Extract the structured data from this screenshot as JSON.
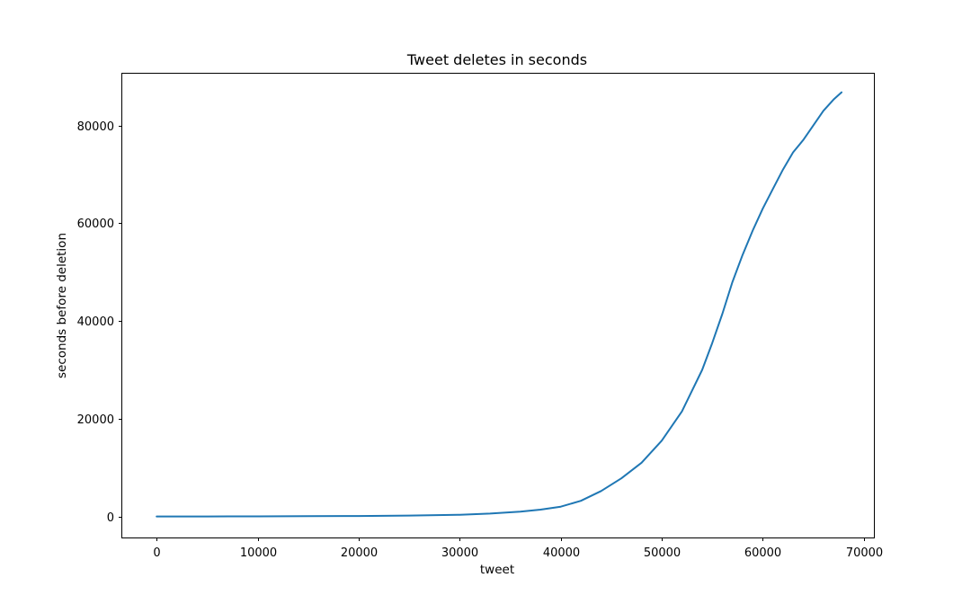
{
  "chart_data": {
    "type": "line",
    "title": "Tweet deletes in seconds",
    "xlabel": "tweet",
    "ylabel": "seconds before deletion",
    "xlim": [
      -3400,
      71000
    ],
    "ylim": [
      -4300,
      90600
    ],
    "xticks": [
      0,
      10000,
      20000,
      30000,
      40000,
      50000,
      60000,
      70000
    ],
    "xtick_labels": [
      "0",
      "10000",
      "20000",
      "30000",
      "40000",
      "50000",
      "60000",
      "70000"
    ],
    "yticks": [
      0,
      20000,
      40000,
      60000,
      80000
    ],
    "ytick_labels": [
      "0",
      "20000",
      "40000",
      "60000",
      "80000"
    ],
    "grid": false,
    "series": [
      {
        "color": "#1f77b4",
        "x": [
          0,
          5000,
          10000,
          15000,
          20000,
          25000,
          30000,
          33000,
          36000,
          38000,
          40000,
          42000,
          44000,
          46000,
          48000,
          50000,
          52000,
          54000,
          55000,
          56000,
          57000,
          58000,
          59000,
          60000,
          61000,
          62000,
          63000,
          64000,
          65000,
          66000,
          67000,
          67800
        ],
        "y": [
          0,
          10,
          30,
          60,
          100,
          180,
          350,
          600,
          1000,
          1400,
          2000,
          3200,
          5200,
          7800,
          11000,
          15500,
          21500,
          30000,
          35500,
          41500,
          48000,
          53500,
          58500,
          63000,
          67000,
          71000,
          74500,
          77000,
          80000,
          83000,
          85300,
          86800
        ]
      }
    ]
  }
}
